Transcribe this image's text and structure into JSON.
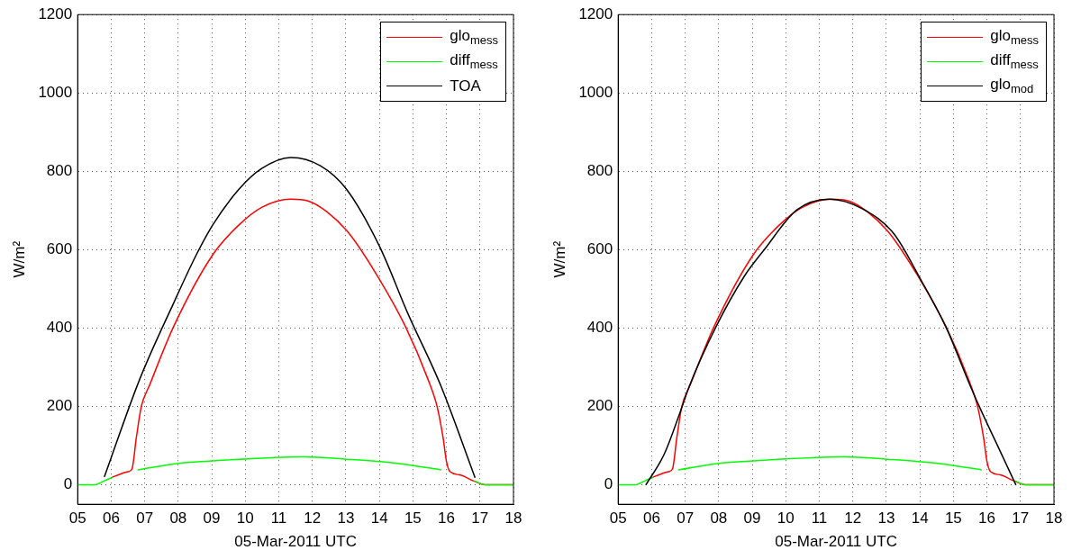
{
  "chart_data": [
    {
      "type": "line",
      "xlabel": "05-Mar-2011 UTC",
      "ylabel": "W/m²",
      "xlim": [
        5,
        18
      ],
      "xticks": [
        {
          "value": 5,
          "label": "05"
        },
        {
          "value": 6,
          "label": "06"
        },
        {
          "value": 7,
          "label": "07"
        },
        {
          "value": 8,
          "label": "08"
        },
        {
          "value": 9,
          "label": "09"
        },
        {
          "value": 10,
          "label": "10"
        },
        {
          "value": 11,
          "label": "11"
        },
        {
          "value": 12,
          "label": "12"
        },
        {
          "value": 13,
          "label": "13"
        },
        {
          "value": 14,
          "label": "14"
        },
        {
          "value": 15,
          "label": "15"
        },
        {
          "value": 16,
          "label": "16"
        },
        {
          "value": 17,
          "label": "17"
        },
        {
          "value": 18,
          "label": "18"
        }
      ],
      "ylim": [
        -50,
        1200
      ],
      "yticks": [
        0,
        200,
        400,
        600,
        800,
        1000,
        1200
      ],
      "grid": true,
      "legend": "top right",
      "line_style": "solid",
      "marker": "none",
      "series": [
        {
          "name": "glo$_{mess}$",
          "color": "#ff0000",
          "x": [
            6.0,
            6.3,
            6.5,
            6.62,
            6.75,
            6.9,
            7.14,
            7.87,
            9.03,
            9.81,
            10.49,
            11.36,
            11.85,
            12.43,
            13.11,
            13.99,
            14.77,
            15.45,
            15.72,
            15.9,
            16.0,
            16.11,
            16.4,
            16.8,
            17.15,
            18
          ],
          "values": [
            18,
            28,
            33,
            40,
            120,
            200,
            253,
            405,
            587,
            663,
            708,
            729,
            725,
            697,
            640,
            526,
            405,
            269,
            200,
            120,
            60,
            33,
            25,
            10,
            0,
            0
          ]
        },
        {
          "name": "diff$_{mess}$",
          "color": "#00ff00",
          "x": [
            5,
            5.5,
            5.8,
            6.02,
            6.4,
            6.8,
            8.06,
            9.03,
            10.78,
            11.75,
            13.02,
            14.47,
            15.83,
            16.3,
            16.85,
            17.15,
            18
          ],
          "values": [
            0,
            0,
            10,
            18,
            null,
            38,
            55,
            61,
            69,
            71,
            65,
            55,
            38,
            null,
            9,
            0,
            0
          ]
        },
        {
          "name": "TOA",
          "color": "#000000",
          "x": [
            5.8,
            6.85,
            7.87,
            8.54,
            9.03,
            9.81,
            10.49,
            11.36,
            12.24,
            13.02,
            14.0,
            14.86,
            15.83,
            16.85
          ],
          "values": [
            21,
            269,
            465,
            587,
            663,
            754,
            807,
            835,
            814,
            754,
            609,
            435,
            253,
            19
          ]
        }
      ]
    },
    {
      "type": "line",
      "xlabel": "05-Mar-2011 UTC",
      "ylabel": "W/m²",
      "xlim": [
        5,
        18
      ],
      "xticks": [
        {
          "value": 5,
          "label": "05"
        },
        {
          "value": 6,
          "label": "06"
        },
        {
          "value": 7,
          "label": "07"
        },
        {
          "value": 8,
          "label": "08"
        },
        {
          "value": 9,
          "label": "09"
        },
        {
          "value": 10,
          "label": "10"
        },
        {
          "value": 11,
          "label": "11"
        },
        {
          "value": 12,
          "label": "12"
        },
        {
          "value": 13,
          "label": "13"
        },
        {
          "value": 14,
          "label": "14"
        },
        {
          "value": 15,
          "label": "15"
        },
        {
          "value": 16,
          "label": "16"
        },
        {
          "value": 17,
          "label": "17"
        },
        {
          "value": 18,
          "label": "18"
        }
      ],
      "ylim": [
        -50,
        1200
      ],
      "yticks": [
        0,
        200,
        400,
        600,
        800,
        1000,
        1200
      ],
      "grid": true,
      "legend": "top right",
      "line_style": "solid",
      "marker": "none",
      "series": [
        {
          "name": "glo$_{mess}$",
          "color": "#ff0000",
          "x": [
            6.0,
            6.3,
            6.5,
            6.62,
            6.75,
            6.9,
            7.14,
            7.87,
            9.03,
            9.81,
            10.49,
            11.36,
            11.85,
            12.43,
            13.11,
            13.99,
            14.77,
            15.45,
            15.72,
            15.9,
            16.0,
            16.11,
            16.4,
            16.8,
            17.15,
            18
          ],
          "values": [
            18,
            28,
            33,
            40,
            120,
            200,
            253,
            405,
            587,
            663,
            708,
            729,
            725,
            697,
            640,
            526,
            405,
            269,
            200,
            120,
            60,
            33,
            25,
            10,
            0,
            0
          ]
        },
        {
          "name": "diff$_{mess}$",
          "color": "#00ff00",
          "x": [
            5,
            5.5,
            5.8,
            6.02,
            6.4,
            6.8,
            8.06,
            9.03,
            10.78,
            11.75,
            13.02,
            14.47,
            15.83,
            16.3,
            16.85,
            17.15,
            18
          ],
          "values": [
            0,
            0,
            10,
            18,
            null,
            38,
            55,
            61,
            69,
            71,
            65,
            55,
            38,
            null,
            9,
            0,
            0
          ]
        },
        {
          "name": "glo$_{mod}$",
          "color": "#000000",
          "x": [
            5.83,
            6.38,
            6.91,
            7.12,
            7.9,
            8.77,
            9.36,
            10.32,
            11.3,
            12.27,
            13.23,
            14.01,
            14.79,
            15.47,
            15.77,
            16.43,
            16.86
          ],
          "values": [
            0,
            79,
            200,
            251,
            400,
            533,
            600,
            701,
            729,
            705,
            640,
            526,
            400,
            259,
            200,
            79,
            0
          ]
        }
      ]
    }
  ]
}
